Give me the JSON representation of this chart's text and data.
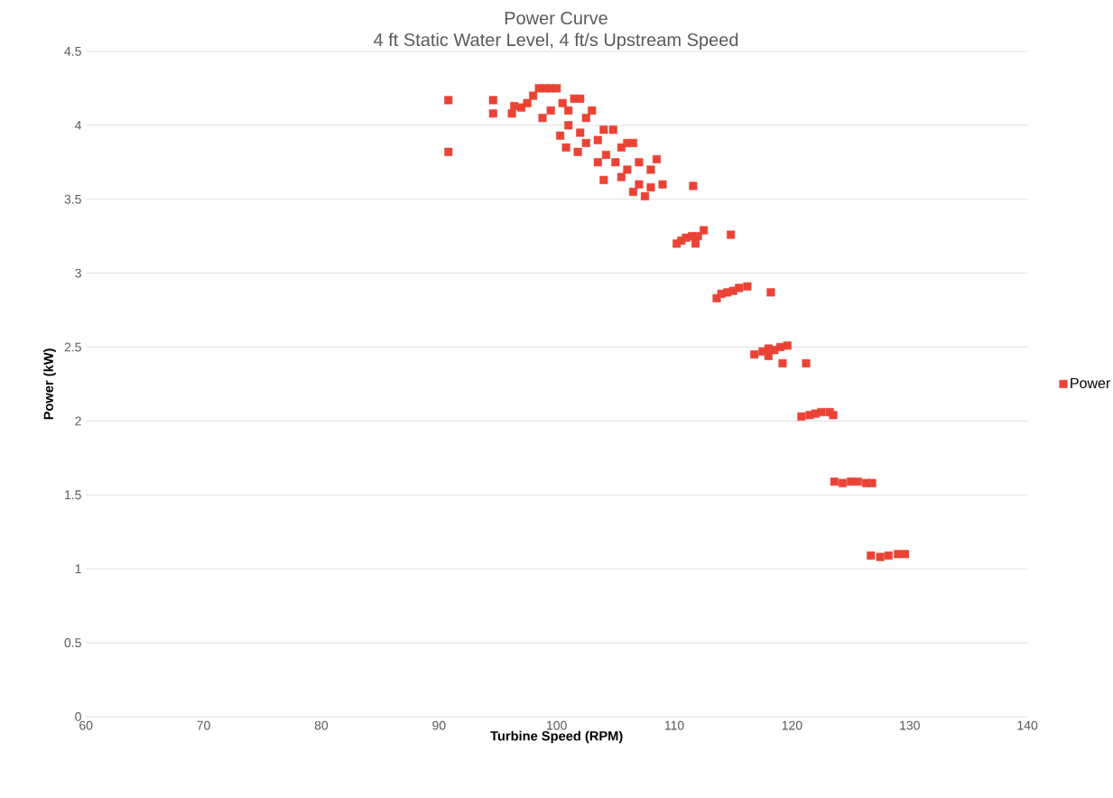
{
  "chart_data": {
    "type": "scatter",
    "title": "Power Curve",
    "subtitle": "4 ft Static Water Level, 4 ft/s Upstream Speed",
    "xlabel": "Turbine Speed (RPM)",
    "ylabel": "Power (kW)",
    "xlim": [
      60,
      140
    ],
    "ylim": [
      0,
      4.5
    ],
    "xticks": [
      60,
      70,
      80,
      90,
      100,
      110,
      120,
      130,
      140
    ],
    "yticks": [
      0,
      0.5,
      1,
      1.5,
      2,
      2.5,
      3,
      3.5,
      4,
      4.5
    ],
    "grid": "y",
    "legend": "right",
    "marker": "square",
    "series": [
      {
        "name": "Power",
        "color": "#ea4335",
        "x": [
          90.8,
          90.8,
          94.6,
          94.6,
          96.2,
          96.4,
          97,
          97.5,
          98,
          98.5,
          99,
          99.5,
          100,
          98.8,
          99.5,
          100.5,
          101,
          101.5,
          102,
          101,
          100.3,
          100.8,
          102,
          102.5,
          103,
          101.8,
          102.5,
          103.5,
          104,
          104.8,
          103.5,
          104.2,
          104,
          105,
          105.5,
          106,
          106.5,
          105.5,
          106,
          106.5,
          107,
          107.5,
          107,
          108,
          108.5,
          108,
          109,
          111.6,
          110.2,
          110.6,
          111,
          111.5,
          112,
          112.5,
          111.8,
          114.8,
          113.6,
          114,
          114.5,
          115,
          115.5,
          116.2,
          118.2,
          116.8,
          117.5,
          118,
          118.5,
          119,
          119.6,
          118,
          119.2,
          121.2,
          120.8,
          121.5,
          122,
          122.5,
          123.2,
          123.5,
          123.6,
          124.3,
          125,
          125.6,
          126.3,
          126.8,
          126.7,
          127.5,
          128.2,
          129,
          129.6
        ],
        "values": [
          4.17,
          3.82,
          4.17,
          4.08,
          4.08,
          4.13,
          4.12,
          4.15,
          4.2,
          4.25,
          4.25,
          4.25,
          4.25,
          4.05,
          4.1,
          4.15,
          4.1,
          4.18,
          4.18,
          4.0,
          3.93,
          3.85,
          3.95,
          4.05,
          4.1,
          3.82,
          3.88,
          3.9,
          3.97,
          3.97,
          3.75,
          3.8,
          3.63,
          3.75,
          3.85,
          3.88,
          3.88,
          3.65,
          3.7,
          3.55,
          3.6,
          3.52,
          3.75,
          3.7,
          3.77,
          3.58,
          3.6,
          3.59,
          3.2,
          3.22,
          3.24,
          3.25,
          3.25,
          3.29,
          3.2,
          3.26,
          2.83,
          2.86,
          2.87,
          2.88,
          2.9,
          2.91,
          2.87,
          2.45,
          2.47,
          2.49,
          2.48,
          2.5,
          2.51,
          2.44,
          2.39,
          2.39,
          2.03,
          2.04,
          2.05,
          2.06,
          2.06,
          2.04,
          1.59,
          1.58,
          1.59,
          1.59,
          1.58,
          1.58,
          1.09,
          1.08,
          1.09,
          1.1,
          1.1
        ]
      }
    ]
  }
}
